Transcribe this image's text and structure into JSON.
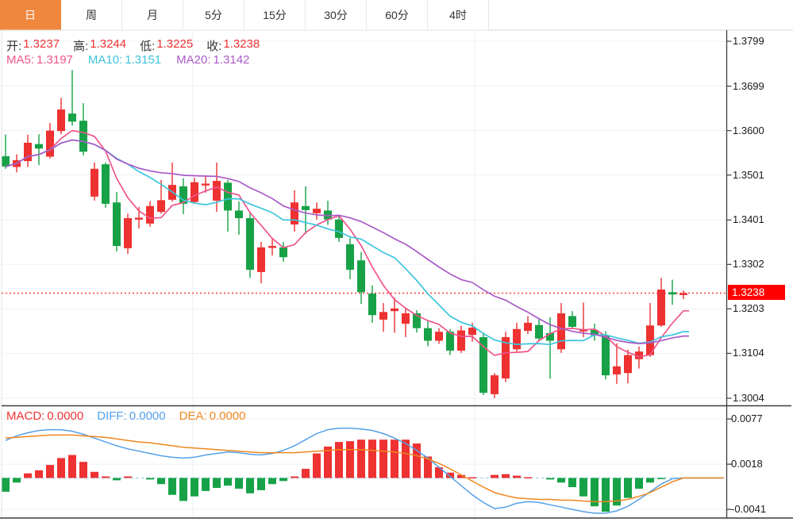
{
  "tabs": [
    {
      "label": "日",
      "name": "tab-day",
      "active": true
    },
    {
      "label": "周",
      "name": "tab-week",
      "active": false
    },
    {
      "label": "月",
      "name": "tab-month",
      "active": false
    },
    {
      "label": "5分",
      "name": "tab-5min",
      "active": false
    },
    {
      "label": "15分",
      "name": "tab-15min",
      "active": false
    },
    {
      "label": "30分",
      "name": "tab-30min",
      "active": false
    },
    {
      "label": "60分",
      "name": "tab-60min",
      "active": false
    },
    {
      "label": "4时",
      "name": "tab-4hour",
      "active": false
    }
  ],
  "indicators": {
    "ohlc": [
      {
        "name": "open",
        "label": "开:",
        "value": "1.3237"
      },
      {
        "name": "high",
        "label": "高:",
        "value": "1.3244"
      },
      {
        "name": "low",
        "label": "低:",
        "value": "1.3225"
      },
      {
        "name": "close",
        "label": "收:",
        "value": "1.3238"
      }
    ],
    "ma": [
      {
        "name": "ma5",
        "label": "MA5:",
        "value": "1.3197",
        "color": "#f0548c"
      },
      {
        "name": "ma10",
        "label": "MA10:",
        "value": "1.3151",
        "color": "#3cc5dd"
      },
      {
        "name": "ma20",
        "label": "MA20:",
        "value": "1.3142",
        "color": "#aa5bc8"
      }
    ],
    "macd": [
      {
        "name": "macd",
        "label": "MACD:",
        "value": "0.0000",
        "color": "#ee3333"
      },
      {
        "name": "diff",
        "label": "DIFF:",
        "value": "0.0000",
        "color": "#55a0e8"
      },
      {
        "name": "dea",
        "label": "DEA:",
        "value": "0.0000",
        "color": "#f0861f"
      }
    ]
  },
  "axis": {
    "price_labels": [
      {
        "text": "1.3799",
        "price": 1.3799
      },
      {
        "text": "1.3699",
        "price": 1.3699
      },
      {
        "text": "1.3600",
        "price": 1.36
      },
      {
        "text": "1.3501",
        "price": 1.3501
      },
      {
        "text": "1.3401",
        "price": 1.3401
      },
      {
        "text": "1.3302",
        "price": 1.3302
      },
      {
        "text": "1.3203",
        "price": 1.3203
      },
      {
        "text": "1.3104",
        "price": 1.3104
      },
      {
        "text": "1.3004",
        "price": 1.3004
      }
    ],
    "current_price_badge": "1.3238",
    "macd_labels": [
      {
        "text": "0.0077",
        "value": 0.0077
      },
      {
        "text": "0.0018",
        "value": 0.0018
      },
      {
        "text": "-0.0041",
        "value": -0.0041
      }
    ]
  },
  "colors": {
    "up": "#ee3131",
    "down": "#17a247",
    "badge": "#fe0000",
    "dotted": "#fc4545",
    "ma5": "#f0548c",
    "ma10": "#3cc5dd",
    "ma20": "#aa5bc8",
    "diff": "#55a0e8",
    "dea": "#f0861f",
    "grid": "#eef1f6",
    "vgrid": "#e9edf4",
    "zero_dash": "#9fd8ea",
    "axis": "#3c3c3c",
    "border": "#e3e3e3",
    "tab_active": "#f0873e"
  },
  "chart_data": {
    "type": "candlestick+macd",
    "title": "",
    "price_ylim": [
      1.2986,
      1.3824
    ],
    "macd_ylim": [
      -0.0052,
      0.0096
    ],
    "current_price": 1.3238,
    "ma_periods": [
      5,
      10,
      20
    ],
    "candles": [
      [
        1.3543,
        1.3591,
        1.3515,
        1.352
      ],
      [
        1.3519,
        1.3547,
        1.3507,
        1.3534
      ],
      [
        1.3532,
        1.3591,
        1.3519,
        1.3573
      ],
      [
        1.357,
        1.3592,
        1.3523,
        1.356
      ],
      [
        1.3542,
        1.3617,
        1.3538,
        1.36
      ],
      [
        1.3599,
        1.3673,
        1.3592,
        1.3647
      ],
      [
        1.3638,
        1.3735,
        1.3611,
        1.362
      ],
      [
        1.3622,
        1.3661,
        1.3545,
        1.3553
      ],
      [
        1.3453,
        1.3529,
        1.3444,
        1.3515
      ],
      [
        1.3525,
        1.3529,
        1.3428,
        1.3437
      ],
      [
        1.344,
        1.3463,
        1.3331,
        1.3343
      ],
      [
        1.3338,
        1.3415,
        1.3325,
        1.3405
      ],
      [
        1.3404,
        1.343,
        1.3382,
        1.3406
      ],
      [
        1.3393,
        1.3443,
        1.3386,
        1.3432
      ],
      [
        1.3419,
        1.349,
        1.3415,
        1.3445
      ],
      [
        1.3446,
        1.3529,
        1.3442,
        1.3479
      ],
      [
        1.3476,
        1.3494,
        1.3414,
        1.3437
      ],
      [
        1.3441,
        1.3495,
        1.3437,
        1.3485
      ],
      [
        1.3479,
        1.35,
        1.3462,
        1.3482
      ],
      [
        1.3444,
        1.3529,
        1.3419,
        1.3488
      ],
      [
        1.3484,
        1.349,
        1.3375,
        1.3422
      ],
      [
        1.3422,
        1.3442,
        1.3368,
        1.3405
      ],
      [
        1.3405,
        1.3418,
        1.3272,
        1.329
      ],
      [
        1.3285,
        1.3352,
        1.326,
        1.334
      ],
      [
        1.3341,
        1.336,
        1.3322,
        1.3343
      ],
      [
        1.334,
        1.3352,
        1.3308,
        1.3318
      ],
      [
        1.3391,
        1.3467,
        1.3375,
        1.344
      ],
      [
        1.3432,
        1.3476,
        1.337,
        1.3423
      ],
      [
        1.3416,
        1.344,
        1.3402,
        1.3426
      ],
      [
        1.3422,
        1.3444,
        1.339,
        1.3402
      ],
      [
        1.3402,
        1.3412,
        1.3352,
        1.3361
      ],
      [
        1.3347,
        1.3361,
        1.3269,
        1.329
      ],
      [
        1.3311,
        1.333,
        1.3214,
        1.324
      ],
      [
        1.3237,
        1.3255,
        1.3172,
        1.3189
      ],
      [
        1.3179,
        1.3216,
        1.3152,
        1.3196
      ],
      [
        1.3198,
        1.3228,
        1.315,
        1.3204
      ],
      [
        1.317,
        1.3205,
        1.314,
        1.3193
      ],
      [
        1.3193,
        1.32,
        1.315,
        1.316
      ],
      [
        1.316,
        1.3175,
        1.312,
        1.3132
      ],
      [
        1.3132,
        1.316,
        1.3125,
        1.3152
      ],
      [
        1.3152,
        1.3158,
        1.31,
        1.311
      ],
      [
        1.311,
        1.3165,
        1.3105,
        1.3155
      ],
      [
        1.3145,
        1.3172,
        1.313,
        1.3161
      ],
      [
        1.314,
        1.315,
        1.3011,
        1.3016
      ],
      [
        1.3013,
        1.306,
        1.3004,
        1.3055
      ],
      [
        1.3048,
        1.3152,
        1.304,
        1.314
      ],
      [
        1.3113,
        1.3172,
        1.3105,
        1.3158
      ],
      [
        1.3154,
        1.3187,
        1.3147,
        1.3172
      ],
      [
        1.3167,
        1.318,
        1.313,
        1.3137
      ],
      [
        1.3149,
        1.3184,
        1.3048,
        1.3132
      ],
      [
        1.3113,
        1.3216,
        1.3105,
        1.3193
      ],
      [
        1.3187,
        1.3198,
        1.3158,
        1.3163
      ],
      [
        1.3155,
        1.3217,
        1.314,
        1.3157
      ],
      [
        1.3156,
        1.317,
        1.3132,
        1.3144
      ],
      [
        1.3144,
        1.3153,
        1.3046,
        1.3055
      ],
      [
        1.3057,
        1.3126,
        1.3036,
        1.3075
      ],
      [
        1.306,
        1.3112,
        1.3037,
        1.31
      ],
      [
        1.3091,
        1.3119,
        1.307,
        1.3108
      ],
      [
        1.31,
        1.3216,
        1.3096,
        1.3166
      ],
      [
        1.3166,
        1.3272,
        1.3163,
        1.3246
      ],
      [
        1.324,
        1.3268,
        1.3212,
        1.3235
      ],
      [
        1.3237,
        1.3244,
        1.3225,
        1.3238
      ]
    ],
    "macd": {
      "hist": [
        -0.0018,
        -0.0006,
        0.0006,
        0.001,
        0.0017,
        0.0026,
        0.003,
        0.0021,
        0.0008,
        0.0002,
        -0.0003,
        0.0002,
        0.0,
        -0.0002,
        -0.0008,
        -0.0022,
        -0.003,
        -0.0024,
        -0.0017,
        -0.0013,
        -0.001,
        -0.0014,
        -0.002,
        -0.0016,
        -0.0008,
        -0.0004,
        0.0002,
        0.0012,
        0.0032,
        0.0041,
        0.0047,
        0.0048,
        0.005,
        0.005,
        0.005,
        0.005,
        0.005,
        0.0045,
        0.0028,
        0.0014,
        0.0007,
        0.0004,
        0.0001,
        0.0,
        0.0004,
        0.0005,
        0.0003,
        0.0001,
        0.0,
        -0.0002,
        -0.0006,
        -0.0012,
        -0.0024,
        -0.0037,
        -0.0044,
        -0.0036,
        -0.0026,
        -0.0014,
        -0.0006,
        -0.0001,
        0.0,
        0.0
      ],
      "diff": [
        0.0049,
        0.0055,
        0.0059,
        0.0062,
        0.0063,
        0.0063,
        0.0061,
        0.0057,
        0.0052,
        0.0047,
        0.0042,
        0.0038,
        0.0035,
        0.0032,
        0.0029,
        0.0027,
        0.0026,
        0.0027,
        0.003,
        0.0032,
        0.0034,
        0.0033,
        0.0031,
        0.003,
        0.0032,
        0.0036,
        0.0042,
        0.005,
        0.0058,
        0.0063,
        0.0065,
        0.0065,
        0.0064,
        0.0062,
        0.0058,
        0.0052,
        0.0045,
        0.0036,
        0.0026,
        0.0014,
        0.0002,
        -0.001,
        -0.0022,
        -0.0032,
        -0.004,
        -0.0038,
        -0.0033,
        -0.0031,
        -0.0032,
        -0.0035,
        -0.0038,
        -0.0041,
        -0.0044,
        -0.0046,
        -0.0046,
        -0.0043,
        -0.0037,
        -0.0028,
        -0.0018,
        -0.0008,
        -0.0001,
        0.0
      ],
      "dea": [
        0.0052,
        0.0053,
        0.0054,
        0.0055,
        0.0056,
        0.0056,
        0.0056,
        0.0055,
        0.0054,
        0.0053,
        0.0051,
        0.0049,
        0.0047,
        0.0046,
        0.0044,
        0.0042,
        0.004,
        0.0039,
        0.0038,
        0.0037,
        0.0036,
        0.0035,
        0.0034,
        0.0033,
        0.0033,
        0.0033,
        0.0033,
        0.0034,
        0.0035,
        0.0036,
        0.0037,
        0.0037,
        0.0037,
        0.0036,
        0.0035,
        0.0034,
        0.0032,
        0.0029,
        0.0025,
        0.0019,
        0.0012,
        0.0004,
        -0.0004,
        -0.0012,
        -0.0019,
        -0.0023,
        -0.0026,
        -0.0027,
        -0.0028,
        -0.0028,
        -0.0029,
        -0.0029,
        -0.003,
        -0.0031,
        -0.0031,
        -0.003,
        -0.0028,
        -0.0024,
        -0.0019,
        -0.0012,
        -0.0005,
        0.0
      ]
    }
  }
}
